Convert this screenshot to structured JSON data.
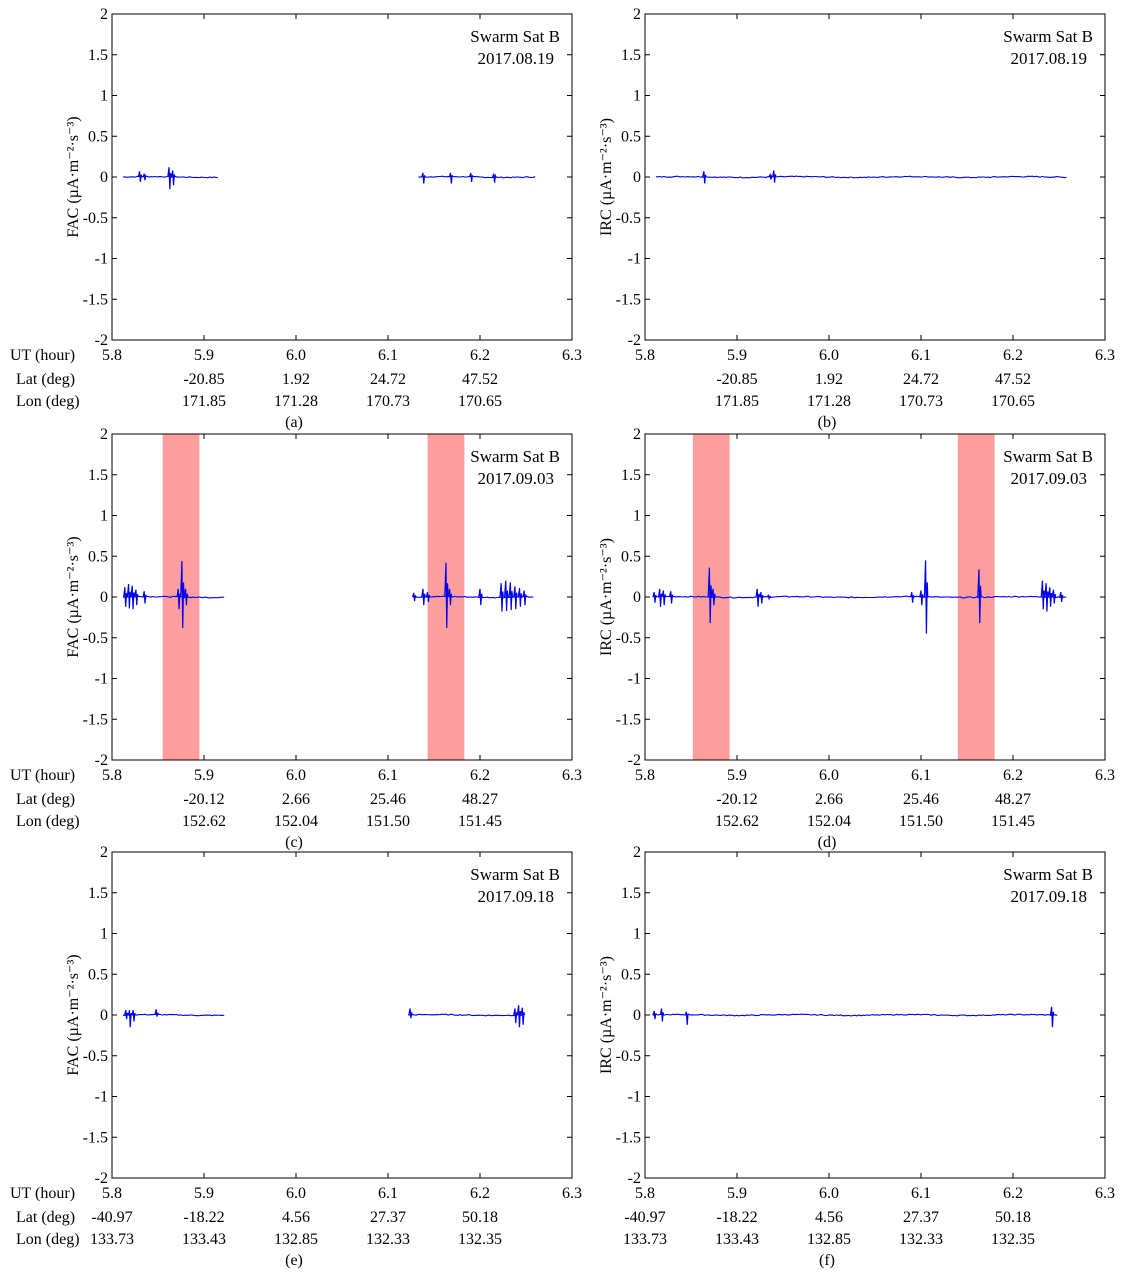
{
  "figure": {
    "satellite_label": "Swarm Sat B",
    "row_labels": [
      "UT (hour)",
      "Lat (deg)",
      "Lon (deg)"
    ],
    "colors": {
      "trace": "#0000ee",
      "highlight": "#ff9999",
      "axis": "#000000"
    }
  },
  "chart_data": [
    {
      "type": "line",
      "panel": "(a)",
      "ylabel": "FAC (µA·m⁻²·s⁻³)",
      "date": "2017.08.19",
      "xlim": [
        5.8,
        6.3
      ],
      "ylim": [
        -2,
        2
      ],
      "xticks": [
        5.8,
        5.9,
        6.0,
        6.1,
        6.2,
        6.3
      ],
      "yticks": [
        -2,
        -1.5,
        -1,
        -0.5,
        0,
        0.5,
        1,
        1.5,
        2
      ],
      "tick_labels": [
        "5.8",
        "5.9",
        "6.0",
        "6.1",
        "6.2",
        "6.3"
      ],
      "lat_labels": [
        "",
        "-20.85",
        "1.92",
        "24.72",
        "47.52",
        ""
      ],
      "lon_labels": [
        "",
        "171.85",
        "171.28",
        "170.73",
        "170.65",
        ""
      ],
      "highlights": [],
      "segments": [
        [
          5.812,
          5.915
        ],
        [
          6.133,
          6.26
        ]
      ],
      "spikes": [
        [
          5.83,
          0.07,
          -0.06
        ],
        [
          5.835,
          0.04,
          -0.04
        ],
        [
          5.862,
          0.12,
          -0.15
        ],
        [
          5.866,
          0.08,
          -0.1
        ],
        [
          6.138,
          0.05,
          -0.08
        ],
        [
          6.168,
          0.05,
          -0.08
        ],
        [
          6.19,
          0.05,
          -0.06
        ],
        [
          6.215,
          0.04,
          -0.07
        ]
      ]
    },
    {
      "type": "line",
      "panel": "(b)",
      "ylabel": "IRC (µA·m⁻²·s⁻³)",
      "date": "2017.08.19",
      "xlim": [
        5.8,
        6.3
      ],
      "ylim": [
        -2,
        2
      ],
      "xticks": [
        5.8,
        5.9,
        6.0,
        6.1,
        6.2,
        6.3
      ],
      "yticks": [
        -2,
        -1.5,
        -1,
        -0.5,
        0,
        0.5,
        1,
        1.5,
        2
      ],
      "tick_labels": [
        "5.8",
        "5.9",
        "6.0",
        "6.1",
        "6.2",
        "6.3"
      ],
      "lat_labels": [
        "",
        "-20.85",
        "1.92",
        "24.72",
        "47.52",
        ""
      ],
      "lon_labels": [
        "",
        "171.85",
        "171.28",
        "170.73",
        "170.65",
        ""
      ],
      "highlights": [],
      "segments": [
        [
          5.812,
          6.258
        ]
      ],
      "spikes": [
        [
          5.864,
          0.07,
          -0.08
        ],
        [
          5.94,
          0.08,
          -0.07
        ],
        [
          5.936,
          0.03,
          -0.03
        ]
      ]
    },
    {
      "type": "line",
      "panel": "(c)",
      "ylabel": "FAC (µA·m⁻²·s⁻³)",
      "date": "2017.09.03",
      "xlim": [
        5.8,
        6.3
      ],
      "ylim": [
        -2,
        2
      ],
      "xticks": [
        5.8,
        5.9,
        6.0,
        6.1,
        6.2,
        6.3
      ],
      "yticks": [
        -2,
        -1.5,
        -1,
        -0.5,
        0,
        0.5,
        1,
        1.5,
        2
      ],
      "tick_labels": [
        "5.8",
        "5.9",
        "6.0",
        "6.1",
        "6.2",
        "6.3"
      ],
      "lat_labels": [
        "",
        "-20.12",
        "2.66",
        "25.46",
        "48.27",
        ""
      ],
      "lon_labels": [
        "",
        "152.62",
        "152.04",
        "151.50",
        "151.45",
        ""
      ],
      "highlights": [
        [
          5.855,
          5.895
        ],
        [
          6.143,
          6.183
        ]
      ],
      "segments": [
        [
          5.812,
          5.922
        ],
        [
          6.127,
          6.258
        ]
      ],
      "spikes": [
        [
          5.814,
          0.12,
          -0.12
        ],
        [
          5.818,
          0.16,
          -0.14
        ],
        [
          5.822,
          0.14,
          -0.15
        ],
        [
          5.826,
          0.09,
          -0.1
        ],
        [
          5.835,
          0.07,
          -0.08
        ],
        [
          5.872,
          0.1,
          -0.15
        ],
        [
          5.876,
          0.44,
          -0.38
        ],
        [
          5.88,
          0.1,
          -0.1
        ],
        [
          6.128,
          0.05,
          -0.05
        ],
        [
          6.138,
          0.1,
          -0.1
        ],
        [
          6.143,
          0.06,
          -0.06
        ],
        [
          6.163,
          0.42,
          -0.38
        ],
        [
          6.167,
          0.1,
          -0.1
        ],
        [
          6.2,
          0.1,
          -0.1
        ],
        [
          6.223,
          0.17,
          -0.18
        ],
        [
          6.228,
          0.2,
          -0.17
        ],
        [
          6.233,
          0.18,
          -0.16
        ],
        [
          6.238,
          0.13,
          -0.15
        ],
        [
          6.243,
          0.11,
          -0.12
        ],
        [
          6.248,
          0.08,
          -0.1
        ]
      ]
    },
    {
      "type": "line",
      "panel": "(d)",
      "ylabel": "IRC (µA·m⁻²·s⁻³)",
      "date": "2017.09.03",
      "xlim": [
        5.8,
        6.3
      ],
      "ylim": [
        -2,
        2
      ],
      "xticks": [
        5.8,
        5.9,
        6.0,
        6.1,
        6.2,
        6.3
      ],
      "yticks": [
        -2,
        -1.5,
        -1,
        -0.5,
        0,
        0.5,
        1,
        1.5,
        2
      ],
      "tick_labels": [
        "5.8",
        "5.9",
        "6.0",
        "6.1",
        "6.2",
        "6.3"
      ],
      "lat_labels": [
        "",
        "-20.12",
        "2.66",
        "25.46",
        "48.27",
        ""
      ],
      "lon_labels": [
        "",
        "152.62",
        "152.04",
        "151.50",
        "151.45",
        ""
      ],
      "highlights": [
        [
          5.852,
          5.892
        ],
        [
          6.14,
          6.18
        ]
      ],
      "segments": [
        [
          5.808,
          6.258
        ]
      ],
      "spikes": [
        [
          5.81,
          0.06,
          -0.07
        ],
        [
          5.816,
          0.1,
          -0.12
        ],
        [
          5.82,
          0.08,
          -0.1
        ],
        [
          5.828,
          0.07,
          -0.08
        ],
        [
          5.87,
          0.36,
          -0.32
        ],
        [
          5.874,
          0.1,
          -0.1
        ],
        [
          5.922,
          0.1,
          -0.12
        ],
        [
          5.926,
          0.06,
          -0.08
        ],
        [
          5.934,
          0.02,
          -0.02
        ],
        [
          6.09,
          0.06,
          -0.07
        ],
        [
          6.1,
          0.08,
          -0.1
        ],
        [
          6.105,
          0.45,
          -0.45
        ],
        [
          6.163,
          0.34,
          -0.32
        ],
        [
          6.232,
          0.2,
          -0.15
        ],
        [
          6.236,
          0.17,
          -0.18
        ],
        [
          6.24,
          0.12,
          -0.12
        ],
        [
          6.244,
          0.09,
          -0.08
        ],
        [
          6.252,
          0.06,
          -0.06
        ]
      ]
    },
    {
      "type": "line",
      "panel": "(e)",
      "ylabel": "FAC (µA·m⁻²·s⁻³)",
      "date": "2017.09.18",
      "xlim": [
        5.8,
        6.3
      ],
      "ylim": [
        -2,
        2
      ],
      "xticks": [
        5.8,
        5.9,
        6.0,
        6.1,
        6.2,
        6.3
      ],
      "yticks": [
        -2,
        -1.5,
        -1,
        -0.5,
        0,
        0.5,
        1,
        1.5,
        2
      ],
      "tick_labels": [
        "5.8",
        "5.9",
        "6.0",
        "6.1",
        "6.2",
        "6.3"
      ],
      "lat_labels": [
        "-40.97",
        "-18.22",
        "4.56",
        "27.37",
        "50.18",
        ""
      ],
      "lon_labels": [
        "133.73",
        "133.43",
        "132.85",
        "132.33",
        "132.35",
        ""
      ],
      "highlights": [],
      "segments": [
        [
          5.812,
          5.922
        ],
        [
          6.122,
          6.248
        ]
      ],
      "spikes": [
        [
          5.815,
          0.06,
          -0.05
        ],
        [
          5.819,
          0.06,
          -0.15
        ],
        [
          5.823,
          0.06,
          -0.08
        ],
        [
          5.848,
          0.07,
          -0.02
        ],
        [
          6.124,
          0.08,
          -0.04
        ],
        [
          6.238,
          0.08,
          -0.1
        ],
        [
          6.242,
          0.12,
          -0.15
        ],
        [
          6.246,
          0.09,
          -0.12
        ]
      ]
    },
    {
      "type": "line",
      "panel": "(f)",
      "ylabel": "IRC (µA·m⁻²·s⁻³)",
      "date": "2017.09.18",
      "xlim": [
        5.8,
        6.3
      ],
      "ylim": [
        -2,
        2
      ],
      "xticks": [
        5.8,
        5.9,
        6.0,
        6.1,
        6.2,
        6.3
      ],
      "yticks": [
        -2,
        -1.5,
        -1,
        -0.5,
        0,
        0.5,
        1,
        1.5,
        2
      ],
      "tick_labels": [
        "5.8",
        "5.9",
        "6.0",
        "6.1",
        "6.2",
        "6.3"
      ],
      "lat_labels": [
        "-40.97",
        "-18.22",
        "4.56",
        "27.37",
        "50.18",
        ""
      ],
      "lon_labels": [
        "133.73",
        "133.43",
        "132.85",
        "132.33",
        "132.35",
        ""
      ],
      "highlights": [],
      "segments": [
        [
          5.808,
          6.248
        ]
      ],
      "spikes": [
        [
          5.81,
          0.05,
          -0.05
        ],
        [
          5.818,
          0.08,
          -0.08
        ],
        [
          5.845,
          0.04,
          -0.12
        ],
        [
          6.242,
          0.1,
          -0.15
        ]
      ]
    }
  ]
}
